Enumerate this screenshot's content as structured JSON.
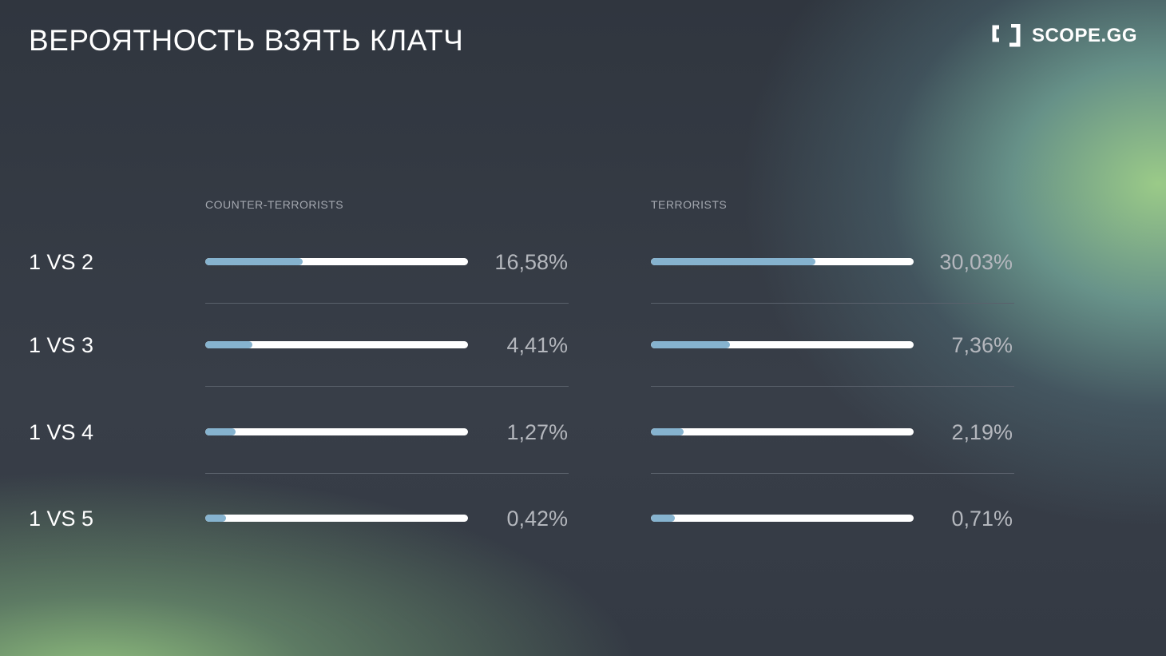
{
  "title": "ВЕРОЯТНОСТЬ ВЗЯТЬ КЛАТЧ",
  "brand": {
    "name": "SCOPE.GG",
    "icon": "scope-bracket-logo-icon"
  },
  "colors": {
    "bar_fill": "#86b3cf",
    "bar_track": "#ffffff",
    "background": "#343a44",
    "glow": "#a0d28c"
  },
  "chart_data": {
    "type": "bar",
    "orientation": "horizontal",
    "title": "ВЕРОЯТНОСТЬ ВЗЯТЬ КЛАТЧ",
    "categories": [
      "1 VS 2",
      "1 VS 3",
      "1 VS 4",
      "1 VS 5"
    ],
    "series": [
      {
        "name": "COUNTER-TERRORISTS",
        "values": [
          16.58,
          4.41,
          1.27,
          0.42
        ],
        "labels": [
          "16,58%",
          "4,41%",
          "1,27%",
          "0,42%"
        ],
        "bar_fill_fractions": [
          0.37,
          0.18,
          0.115,
          0.08
        ]
      },
      {
        "name": "TERRORISTS",
        "values": [
          30.03,
          7.36,
          2.19,
          0.71
        ],
        "labels": [
          "30,03%",
          "7,36%",
          "2,19%",
          "0,71%"
        ],
        "bar_fill_fractions": [
          0.625,
          0.3,
          0.125,
          0.09
        ]
      }
    ],
    "unit": "%",
    "grid": false,
    "legend": "column-headers-top"
  }
}
